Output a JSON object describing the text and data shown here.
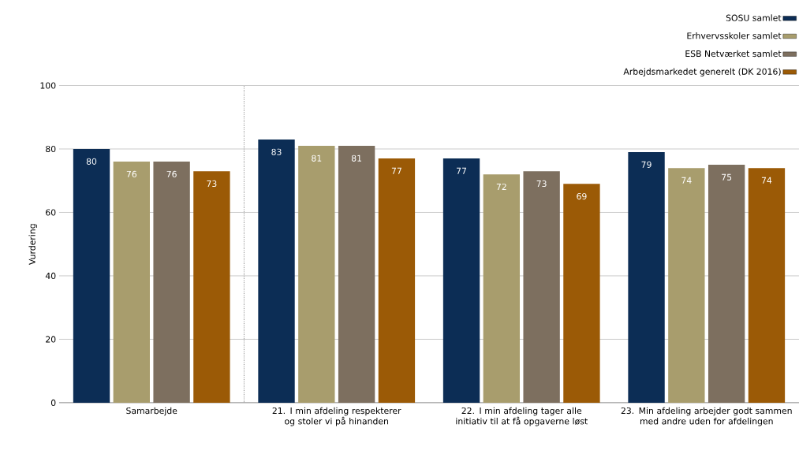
{
  "chart_data": {
    "type": "bar",
    "ylabel": "Vurdering",
    "categories": [
      "Samarbejde",
      "21. I min afdeling respekterer og stoler vi på hinanden",
      "22. I min afdeling tager alle initiativ til at få opgaverne løst",
      "23. Min afdeling arbejder godt sammen med andre uden for afdelingen"
    ],
    "series": [
      {
        "name": "SOSU samlet",
        "color": "#0c2d55",
        "values": [
          80,
          83,
          77,
          79
        ]
      },
      {
        "name": "Erhvervsskoler samlet",
        "color": "#a89d6d",
        "values": [
          76,
          81,
          72,
          74
        ]
      },
      {
        "name": "ESB Netværket samlet",
        "color": "#7d6f5f",
        "values": [
          76,
          81,
          73,
          75
        ]
      },
      {
        "name": "Arbejdsmarkedet generelt (DK 2016)",
        "color": "#9b5a06",
        "values": [
          73,
          77,
          69,
          74
        ]
      }
    ],
    "ylim": [
      0,
      100
    ],
    "yticks": [
      0,
      20,
      40,
      60,
      80,
      100
    ],
    "grid": "y",
    "legend": "top right",
    "data_labels": true
  }
}
